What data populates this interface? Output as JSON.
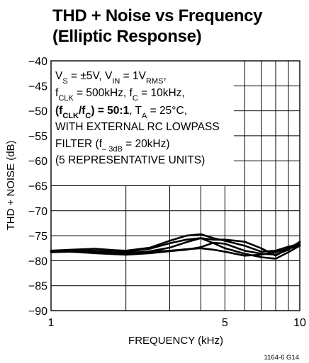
{
  "chart_data": {
    "type": "line",
    "title_line1": "THD + Noise vs Frequency",
    "title_line2": "(Elliptic Response)",
    "xlabel": "FREQUENCY (kHz)",
    "ylabel": "THD + NOISE (dB)",
    "x_scale": "log",
    "xlim": [
      1,
      10
    ],
    "ylim": [
      -90,
      -40
    ],
    "x_ticks": [
      {
        "value": 1,
        "label": "1"
      },
      {
        "value": 5,
        "label": "5"
      },
      {
        "value": 10,
        "label": "10"
      }
    ],
    "y_ticks": [
      {
        "value": -40,
        "label": "−40"
      },
      {
        "value": -45,
        "label": "−45"
      },
      {
        "value": -50,
        "label": "−50"
      },
      {
        "value": -55,
        "label": "−55"
      },
      {
        "value": -60,
        "label": "−60"
      },
      {
        "value": -65,
        "label": "−65"
      },
      {
        "value": -70,
        "label": "−70"
      },
      {
        "value": -75,
        "label": "−75"
      },
      {
        "value": -80,
        "label": "−80"
      },
      {
        "value": -85,
        "label": "−85"
      },
      {
        "value": -90,
        "label": "−90"
      }
    ],
    "grid": true,
    "annotation": {
      "line1": {
        "a": "V",
        "a_sub": "S",
        "b": " = ±5V, V",
        "b_sub": "IN",
        "c": " = 1V",
        "c_sub": "RMS",
        "d": ","
      },
      "line2": {
        "a": "f",
        "a_sub": "CLK",
        "b": " = 500kHz, f",
        "b_sub": "C",
        "c": " = 10kHz,"
      },
      "line3": {
        "a": "(f",
        "a_sub": "CLK",
        "b": "/f",
        "b_sub": "C",
        "c": ") = 50:1",
        "d": ", T",
        "d_sub": "A",
        "e": " = 25°C,"
      },
      "line4": "WITH EXTERNAL RC LOWPASS",
      "line5": {
        "a": "FILTER (f",
        "a_sub": "– 3dB",
        "b": " = 20kHz)"
      },
      "line6": "(5 REPRESENTATIVE UNITS)"
    },
    "series": [
      {
        "x": [
          1,
          1.2,
          1.5,
          1.8,
          2.0,
          2.5,
          3.0,
          3.5,
          4.0,
          4.5,
          5.0,
          6.0,
          7.0,
          8.0,
          9.0,
          10.0
        ],
        "y": [
          -78,
          -77.8,
          -77.6,
          -77.9,
          -78,
          -77.4,
          -76,
          -75,
          -74.7,
          -75.5,
          -76,
          -77,
          -78.2,
          -78,
          -77.2,
          -76.7
        ]
      },
      {
        "x": [
          1,
          1.2,
          1.5,
          1.8,
          2.0,
          2.5,
          3.0,
          3.5,
          4.0,
          4.5,
          5.0,
          6.0,
          7.0,
          8.0,
          9.0,
          10.0
        ],
        "y": [
          -78.2,
          -78,
          -78,
          -78.2,
          -78.2,
          -77.6,
          -76.5,
          -75.8,
          -75.5,
          -75.8,
          -75.8,
          -76.2,
          -77.5,
          -79,
          -77.5,
          -76.3
        ]
      },
      {
        "x": [
          1,
          1.2,
          1.5,
          1.8,
          2.0,
          2.5,
          3.0,
          3.5,
          4.0,
          4.5,
          5.0,
          6.0,
          7.0,
          8.0,
          9.0,
          10.0
        ],
        "y": [
          -78.3,
          -78.2,
          -78.3,
          -78.5,
          -78.6,
          -78.1,
          -77.4,
          -76.3,
          -75.5,
          -76.5,
          -77.5,
          -78.6,
          -79.3,
          -79.6,
          -78.3,
          -77
        ]
      },
      {
        "x": [
          1,
          1.2,
          1.5,
          1.8,
          2.0,
          2.5,
          3.0,
          3.5,
          4.0,
          4.5,
          5.0,
          6.0,
          7.0,
          8.0,
          9.0,
          10.0
        ],
        "y": [
          -78,
          -77.9,
          -78.2,
          -78.4,
          -78.4,
          -78.2,
          -78,
          -77.7,
          -77.5,
          -77.8,
          -78.2,
          -79,
          -78.8,
          -78.3,
          -77.6,
          -77
        ]
      },
      {
        "x": [
          1,
          1.2,
          1.5,
          1.8,
          2.0,
          2.5,
          3.0,
          3.5,
          4.0,
          4.5,
          5.0,
          6.0,
          7.0,
          8.0,
          9.0,
          10.0
        ],
        "y": [
          -78,
          -78.2,
          -78.5,
          -78.7,
          -78.8,
          -78.5,
          -78.1,
          -77.8,
          -77.3,
          -76.4,
          -76.6,
          -78,
          -78.6,
          -78.8,
          -77.8,
          -76.2
        ]
      }
    ]
  },
  "figure_code": "1164-6 G14"
}
